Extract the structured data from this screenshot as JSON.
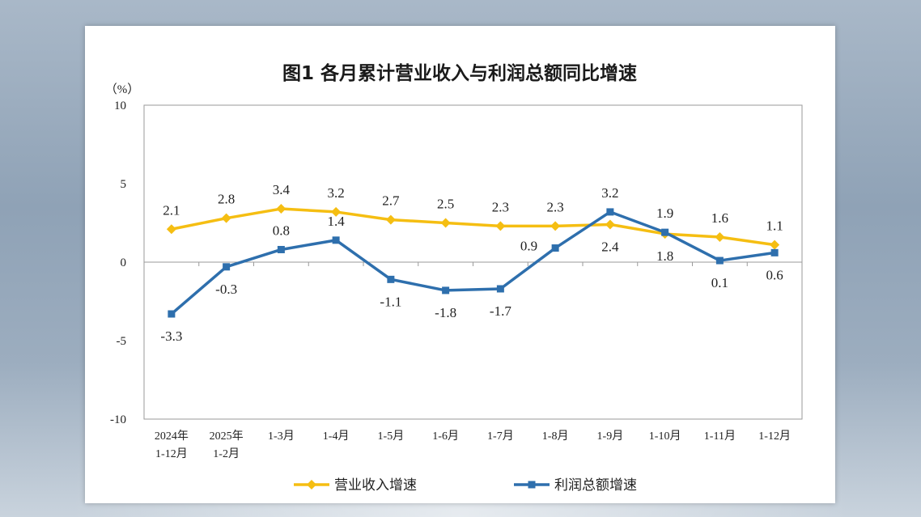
{
  "chart_data": {
    "type": "line",
    "title": "图1  各月累计营业收入与利润总额同比增速",
    "unit_label": "（%）",
    "ylim": [
      -10,
      10
    ],
    "yticks": [
      "10",
      "5",
      "0",
      "-5",
      "-10"
    ],
    "categories": [
      [
        "2024年",
        "1-12月"
      ],
      [
        "2025年",
        "1-2月"
      ],
      [
        "1-3月"
      ],
      [
        "1-4月"
      ],
      [
        "1-5月"
      ],
      [
        "1-6月"
      ],
      [
        "1-7月"
      ],
      [
        "1-8月"
      ],
      [
        "1-9月"
      ],
      [
        "1-10月"
      ],
      [
        "1-11月"
      ],
      [
        "1-12月"
      ]
    ],
    "series": [
      {
        "name": "营业收入增速",
        "color": "#f5be12",
        "marker": "diamond",
        "values": [
          2.1,
          2.8,
          3.4,
          3.2,
          2.7,
          2.5,
          2.3,
          2.3,
          2.4,
          1.8,
          1.6,
          1.1
        ],
        "labels": [
          "2.1",
          "2.8",
          "3.4",
          "3.2",
          "2.7",
          "2.5",
          "2.3",
          "2.3",
          "2.4",
          "1.8",
          "1.6",
          "1.1"
        ],
        "label_pos": [
          "above",
          "above",
          "above",
          "above",
          "above",
          "above",
          "above",
          "above",
          "below",
          "below",
          "above",
          "above"
        ]
      },
      {
        "name": "利润总额增速",
        "color": "#2e6fad",
        "marker": "square",
        "values": [
          -3.3,
          -0.3,
          0.8,
          1.4,
          -1.1,
          -1.8,
          -1.7,
          0.9,
          3.2,
          1.9,
          0.1,
          0.6
        ],
        "labels": [
          "-3.3",
          "-0.3",
          "0.8",
          "1.4",
          "-1.1",
          "-1.8",
          "-1.7",
          "0.9",
          "3.2",
          "1.9",
          "0.1",
          "0.6"
        ],
        "label_pos": [
          "below",
          "below",
          "above",
          "above",
          "below",
          "below",
          "below",
          "left",
          "above",
          "above",
          "below",
          "below"
        ]
      }
    ]
  }
}
